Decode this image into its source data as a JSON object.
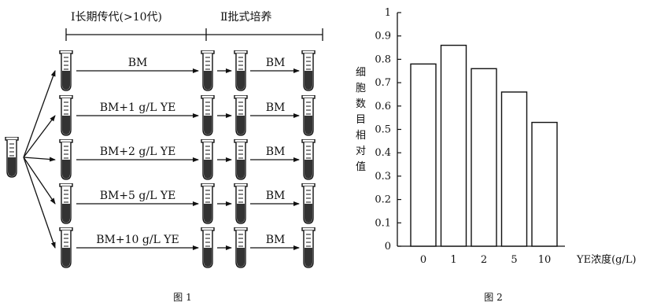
{
  "figure1": {
    "caption": "图 1",
    "stage1_label": "Ⅰ长期传代(>10代)",
    "stage2_label": "Ⅱ批式培养",
    "rows": [
      {
        "medium": "BM",
        "batch": "BM"
      },
      {
        "medium": "BM+1 g/L YE",
        "batch": "BM"
      },
      {
        "medium": "BM+2 g/L YE",
        "batch": "BM"
      },
      {
        "medium": "BM+5 g/L YE",
        "batch": "BM"
      },
      {
        "medium": "BM+10 g/L YE",
        "batch": "BM"
      }
    ]
  },
  "figure2": {
    "caption": "图 2"
  },
  "chart_data": {
    "type": "bar",
    "categories": [
      "0",
      "1",
      "2",
      "5",
      "10"
    ],
    "values": [
      0.78,
      0.86,
      0.76,
      0.66,
      0.53
    ],
    "ylabel": "细胞数目相对值",
    "xlabel": "YE浓度(g/L)",
    "ylim": [
      0,
      1
    ],
    "yticks": [
      "0",
      "0.1",
      "0.2",
      "0.3",
      "0.4",
      "0.5",
      "0.6",
      "0.7",
      "0.8",
      "0.9",
      "1"
    ],
    "grid": false
  }
}
